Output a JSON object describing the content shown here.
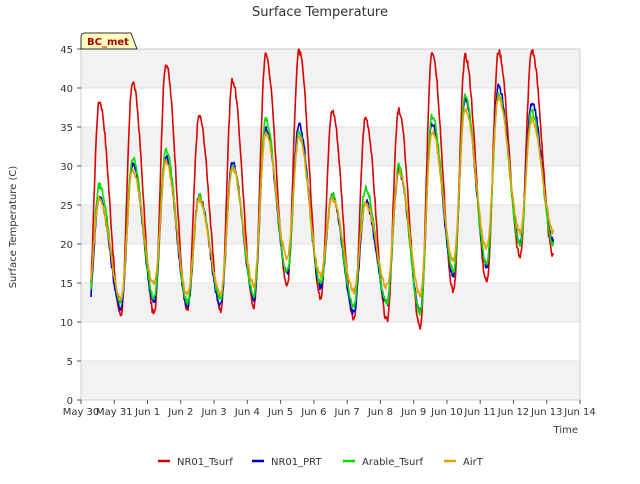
{
  "chart_data": {
    "type": "line",
    "title": "Surface Temperature",
    "xlabel": "Time",
    "ylabel": "Surface Temperature (C)",
    "ylim": [
      0,
      45
    ],
    "xlim": [
      0,
      15
    ],
    "yticks": [
      0,
      5,
      10,
      15,
      20,
      25,
      30,
      35,
      40,
      45
    ],
    "xtick_labels": [
      "May 30",
      "May 31",
      "Jun 1",
      "Jun 2",
      "Jun 3",
      "Jun 4",
      "Jun 5",
      "Jun 6",
      "Jun 7",
      "Jun 8",
      "Jun 9",
      "Jun 10",
      "Jun 11",
      "Jun 12",
      "Jun 13",
      "Jun 14"
    ],
    "annotation": "BC_met",
    "grid": "horizontal bands",
    "legend_position": "bottom",
    "daily_extremes_note": "peaks occur near mid-day, minima near early morning",
    "series": [
      {
        "name": "NR01_Tsurf",
        "color": "#dd0000",
        "daily_max": [
          38.3,
          40.8,
          43.1,
          36.4,
          41.0,
          44.3,
          44.7,
          37.1,
          36.2,
          37.1,
          44.8,
          44.1,
          44.7,
          44.8
        ],
        "daily_min": [
          9.2,
          10.9,
          11.0,
          11.4,
          11.5,
          12.0,
          14.8,
          13.2,
          10.3,
          10.1,
          9.3,
          14.0,
          15.2,
          18.4
        ]
      },
      {
        "name": "NR01_PRT",
        "color": "#0000cc",
        "daily_max": [
          26.0,
          30.2,
          31.2,
          26.2,
          30.5,
          35.0,
          35.3,
          26.2,
          25.5,
          29.5,
          35.5,
          38.6,
          40.2,
          38.1
        ],
        "daily_min": [
          10.6,
          11.8,
          12.5,
          12.0,
          12.2,
          13.0,
          16.2,
          14.5,
          11.2,
          12.3,
          11.5,
          16.0,
          17.2,
          20.4
        ]
      },
      {
        "name": "Arable_Tsurf",
        "color": "#00dd00",
        "daily_max": [
          27.5,
          31.0,
          32.2,
          26.0,
          30.0,
          35.9,
          34.2,
          26.3,
          27.2,
          30.0,
          36.4,
          39.0,
          39.3,
          37.0
        ],
        "daily_min": [
          11.2,
          12.5,
          13.0,
          12.5,
          13.0,
          13.5,
          16.5,
          15.0,
          12.0,
          12.5,
          11.2,
          16.5,
          17.5,
          20.0
        ]
      },
      {
        "name": "AirT",
        "color": "#e6a000",
        "daily_max": [
          25.8,
          29.5,
          30.5,
          25.7,
          29.8,
          34.2,
          33.8,
          25.8,
          25.2,
          29.3,
          34.5,
          37.4,
          38.9,
          36.0
        ],
        "daily_min": [
          12.8,
          13.0,
          14.8,
          13.5,
          13.5,
          14.8,
          18.2,
          16.0,
          14.0,
          14.5,
          13.5,
          18.0,
          19.5,
          21.5
        ]
      }
    ],
    "series_start_x": 0.3,
    "series_end_x": 14.2
  }
}
